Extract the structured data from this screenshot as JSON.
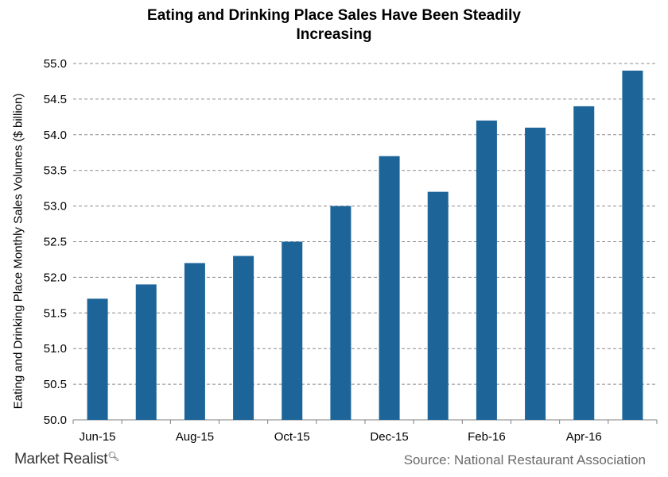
{
  "brand": {
    "name": "Market Realist",
    "icon": "magnifier-icon"
  },
  "source": "Source: National Restaurant Association",
  "chart_data": {
    "type": "bar",
    "title": "Eating and Drinking Place Sales Have Been Steadily Increasing",
    "title_lines": [
      "Eating and Drinking  Place Sales Have Been Steadily",
      "Increasing"
    ],
    "xlabel": "",
    "ylabel": "Eating and Drinking Place Monthly Sales Volumes ($ billion)",
    "categories": [
      "Jun-15",
      "Jul-15",
      "Aug-15",
      "Sep-15",
      "Oct-15",
      "Nov-15",
      "Dec-15",
      "Jan-16",
      "Feb-16",
      "Mar-16",
      "Apr-16",
      "May-16"
    ],
    "x_tick_labels": [
      "Jun-15",
      "",
      "Aug-15",
      "",
      "Oct-15",
      "",
      "Dec-15",
      "",
      "Feb-16",
      "",
      "Apr-16",
      ""
    ],
    "values": [
      51.7,
      51.9,
      52.2,
      52.3,
      52.5,
      53.0,
      53.7,
      53.2,
      54.2,
      54.1,
      54.4,
      54.9
    ],
    "ylim": [
      50.0,
      55.0
    ],
    "yticks": [
      "50.0",
      "50.5",
      "51.0",
      "51.5",
      "52.0",
      "52.5",
      "53.0",
      "53.5",
      "54.0",
      "54.5",
      "55.0"
    ],
    "grid": true,
    "bar_color": "#1d6599",
    "grid_color": "#8c8c8c"
  }
}
